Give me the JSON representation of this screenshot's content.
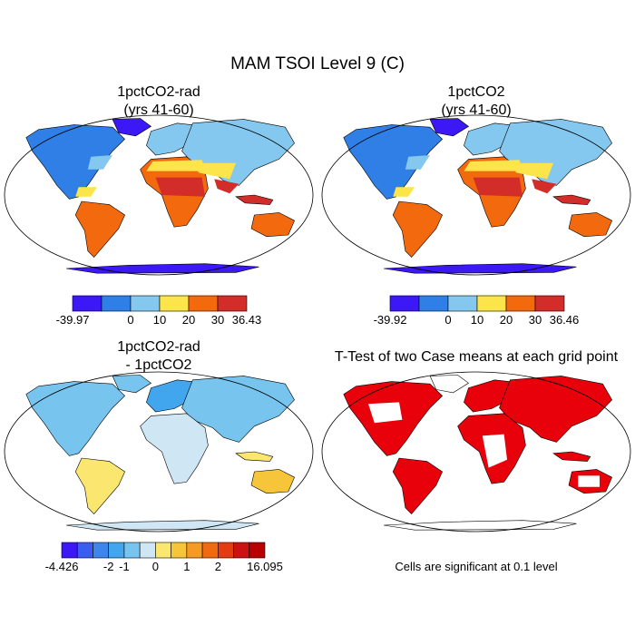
{
  "figure": {
    "title": "MAM TSOI Level 9 (C)"
  },
  "panels": [
    {
      "title": [
        "1pctCO2-rad",
        "(yrs 41-60)"
      ],
      "field": "absolute"
    },
    {
      "title": [
        "1pctCO2",
        "(yrs 41-60)"
      ],
      "field": "absolute"
    },
    {
      "title": [
        "1pctCO2-rad",
        "- 1pctCO2"
      ],
      "field": "difference"
    },
    {
      "title": [
        "T-Test of two Case means at each grid point"
      ],
      "field": "significance"
    }
  ],
  "colorbars": [
    {
      "colors": [
        "#3b18f5",
        "#2f7fe6",
        "#85c8ef",
        "#fbe54a",
        "#f2690e",
        "#d32d2a"
      ],
      "labels": [
        "-39.97",
        "0",
        "10",
        "20",
        "30",
        "36.43"
      ]
    },
    {
      "colors": [
        "#3b18f5",
        "#2f7fe6",
        "#85c8ef",
        "#fbe54a",
        "#f2690e",
        "#d32d2a"
      ],
      "labels": [
        "-39.92",
        "0",
        "10",
        "20",
        "30",
        "36.46"
      ]
    },
    {
      "colors": [
        "#3b18f5",
        "#3a5cf0",
        "#3e86ec",
        "#41a6ee",
        "#77c4ef",
        "#cfe7f4",
        "#fbe670",
        "#f6c53a",
        "#f59a25",
        "#f06a12",
        "#e43c12",
        "#cc1111",
        "#b80000"
      ],
      "labels": [
        "-4.426",
        "-2",
        "-1",
        "0",
        "1",
        "2",
        "16.095"
      ]
    }
  ],
  "significance_note": "Cells are significant at 0.1 level",
  "significance_color": "#e8000b",
  "land_colors": {
    "polar": "#3b18f5",
    "cold": "#2f7fe6",
    "cool": "#85c8ef",
    "mild": "#fbe54a",
    "warm": "#f2690e",
    "hot": "#d32d2a"
  }
}
